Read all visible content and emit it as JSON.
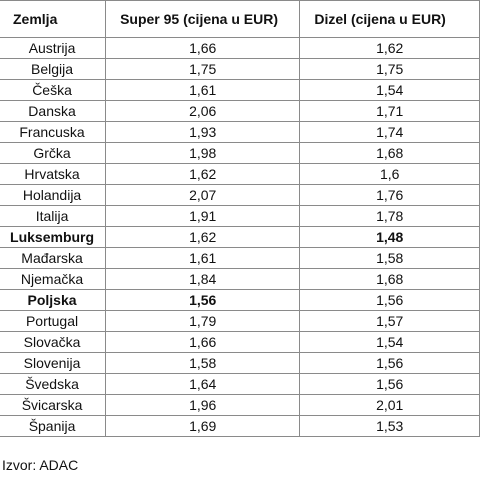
{
  "table": {
    "headers": [
      "Zemlja",
      "Super 95 (cijena u EUR)",
      "Dizel (cijena u EUR)"
    ],
    "rows": [
      {
        "country": "Austrija",
        "super95": "1,66",
        "dizel": "1,62",
        "bold_country": false,
        "bold_super": false,
        "bold_dizel": false
      },
      {
        "country": "Belgija",
        "super95": "1,75",
        "dizel": "1,75",
        "bold_country": false,
        "bold_super": false,
        "bold_dizel": false
      },
      {
        "country": "Češka",
        "super95": "1,61",
        "dizel": "1,54",
        "bold_country": false,
        "bold_super": false,
        "bold_dizel": false
      },
      {
        "country": "Danska",
        "super95": "2,06",
        "dizel": "1,71",
        "bold_country": false,
        "bold_super": false,
        "bold_dizel": false
      },
      {
        "country": "Francuska",
        "super95": "1,93",
        "dizel": "1,74",
        "bold_country": false,
        "bold_super": false,
        "bold_dizel": false
      },
      {
        "country": "Grčka",
        "super95": "1,98",
        "dizel": "1,68",
        "bold_country": false,
        "bold_super": false,
        "bold_dizel": false
      },
      {
        "country": "Hrvatska",
        "super95": "1,62",
        "dizel": "1,6",
        "bold_country": false,
        "bold_super": false,
        "bold_dizel": false
      },
      {
        "country": "Holandija",
        "super95": "2,07",
        "dizel": "1,76",
        "bold_country": false,
        "bold_super": false,
        "bold_dizel": false
      },
      {
        "country": "Italija",
        "super95": "1,91",
        "dizel": "1,78",
        "bold_country": false,
        "bold_super": false,
        "bold_dizel": false
      },
      {
        "country": "Luksemburg",
        "super95": "1,62",
        "dizel": "1,48",
        "bold_country": true,
        "bold_super": false,
        "bold_dizel": true
      },
      {
        "country": "Mađarska",
        "super95": "1,61",
        "dizel": "1,58",
        "bold_country": false,
        "bold_super": false,
        "bold_dizel": false
      },
      {
        "country": "Njemačka",
        "super95": "1,84",
        "dizel": "1,68",
        "bold_country": false,
        "bold_super": false,
        "bold_dizel": false
      },
      {
        "country": "Poljska",
        "super95": "1,56",
        "dizel": "1,56",
        "bold_country": true,
        "bold_super": true,
        "bold_dizel": false
      },
      {
        "country": "Portugal",
        "super95": "1,79",
        "dizel": "1,57",
        "bold_country": false,
        "bold_super": false,
        "bold_dizel": false
      },
      {
        "country": "Slovačka",
        "super95": "1,66",
        "dizel": "1,54",
        "bold_country": false,
        "bold_super": false,
        "bold_dizel": false
      },
      {
        "country": "Slovenija",
        "super95": "1,58",
        "dizel": "1,56",
        "bold_country": false,
        "bold_super": false,
        "bold_dizel": false
      },
      {
        "country": "Švedska",
        "super95": "1,64",
        "dizel": "1,56",
        "bold_country": false,
        "bold_super": false,
        "bold_dizel": false
      },
      {
        "country": "Švicarska",
        "super95": "1,96",
        "dizel": "2,01",
        "bold_country": false,
        "bold_super": false,
        "bold_dizel": false
      },
      {
        "country": "Španija",
        "super95": "1,69",
        "dizel": "1,53",
        "bold_country": false,
        "bold_super": false,
        "bold_dizel": false
      }
    ]
  },
  "source": "Izvor: ADAC"
}
